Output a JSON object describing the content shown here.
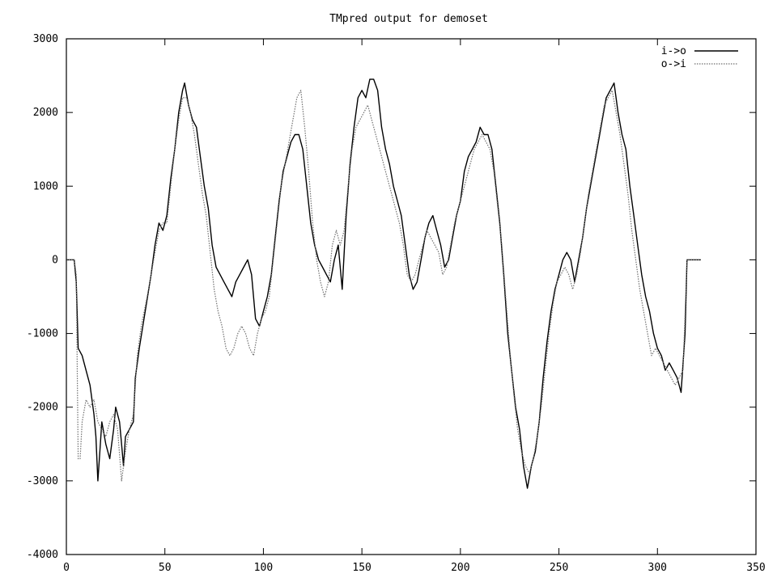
{
  "chart_data": {
    "type": "line",
    "title": "TMpred output for demoset",
    "xlabel": "",
    "ylabel": "",
    "xlim": [
      0,
      350
    ],
    "ylim": [
      -4000,
      3000
    ],
    "xticks": [
      0,
      50,
      100,
      150,
      200,
      250,
      300,
      350
    ],
    "yticks": [
      -4000,
      -3000,
      -2000,
      -1000,
      0,
      1000,
      2000,
      3000
    ],
    "grid": false,
    "legend_position": "top-right",
    "series": [
      {
        "name": "i->o",
        "style": "solid",
        "color": "#000000",
        "points": [
          [
            0,
            0
          ],
          [
            4,
            0
          ],
          [
            5,
            -300
          ],
          [
            6,
            -1200
          ],
          [
            8,
            -1300
          ],
          [
            10,
            -1500
          ],
          [
            12,
            -1700
          ],
          [
            14,
            -2100
          ],
          [
            15,
            -2400
          ],
          [
            16,
            -3000
          ],
          [
            17,
            -2600
          ],
          [
            18,
            -2200
          ],
          [
            20,
            -2500
          ],
          [
            22,
            -2700
          ],
          [
            24,
            -2300
          ],
          [
            25,
            -2000
          ],
          [
            27,
            -2200
          ],
          [
            28,
            -2500
          ],
          [
            29,
            -2800
          ],
          [
            30,
            -2400
          ],
          [
            32,
            -2300
          ],
          [
            34,
            -2200
          ],
          [
            35,
            -1600
          ],
          [
            37,
            -1200
          ],
          [
            40,
            -700
          ],
          [
            43,
            -200
          ],
          [
            45,
            200
          ],
          [
            47,
            500
          ],
          [
            49,
            400
          ],
          [
            51,
            600
          ],
          [
            53,
            1100
          ],
          [
            55,
            1500
          ],
          [
            57,
            2000
          ],
          [
            59,
            2300
          ],
          [
            60,
            2400
          ],
          [
            62,
            2100
          ],
          [
            64,
            1900
          ],
          [
            66,
            1800
          ],
          [
            68,
            1400
          ],
          [
            70,
            1000
          ],
          [
            72,
            700
          ],
          [
            74,
            200
          ],
          [
            76,
            -100
          ],
          [
            78,
            -200
          ],
          [
            80,
            -300
          ],
          [
            82,
            -400
          ],
          [
            84,
            -500
          ],
          [
            86,
            -300
          ],
          [
            88,
            -200
          ],
          [
            90,
            -100
          ],
          [
            92,
            0
          ],
          [
            94,
            -200
          ],
          [
            96,
            -800
          ],
          [
            98,
            -900
          ],
          [
            100,
            -700
          ],
          [
            102,
            -500
          ],
          [
            104,
            -200
          ],
          [
            106,
            300
          ],
          [
            108,
            800
          ],
          [
            110,
            1200
          ],
          [
            112,
            1400
          ],
          [
            114,
            1600
          ],
          [
            116,
            1700
          ],
          [
            118,
            1700
          ],
          [
            120,
            1500
          ],
          [
            122,
            1000
          ],
          [
            124,
            500
          ],
          [
            126,
            200
          ],
          [
            128,
            0
          ],
          [
            130,
            -100
          ],
          [
            132,
            -200
          ],
          [
            134,
            -300
          ],
          [
            136,
            0
          ],
          [
            138,
            200
          ],
          [
            140,
            -400
          ],
          [
            142,
            600
          ],
          [
            144,
            1300
          ],
          [
            146,
            1800
          ],
          [
            148,
            2200
          ],
          [
            150,
            2300
          ],
          [
            152,
            2200
          ],
          [
            154,
            2450
          ],
          [
            156,
            2450
          ],
          [
            158,
            2300
          ],
          [
            160,
            1800
          ],
          [
            162,
            1500
          ],
          [
            164,
            1300
          ],
          [
            166,
            1000
          ],
          [
            168,
            800
          ],
          [
            170,
            600
          ],
          [
            172,
            200
          ],
          [
            174,
            -200
          ],
          [
            176,
            -400
          ],
          [
            178,
            -300
          ],
          [
            180,
            0
          ],
          [
            182,
            300
          ],
          [
            184,
            500
          ],
          [
            186,
            600
          ],
          [
            188,
            400
          ],
          [
            190,
            200
          ],
          [
            192,
            -100
          ],
          [
            194,
            0
          ],
          [
            196,
            300
          ],
          [
            198,
            600
          ],
          [
            200,
            800
          ],
          [
            202,
            1200
          ],
          [
            204,
            1400
          ],
          [
            206,
            1500
          ],
          [
            208,
            1600
          ],
          [
            210,
            1800
          ],
          [
            212,
            1700
          ],
          [
            214,
            1700
          ],
          [
            216,
            1500
          ],
          [
            218,
            1000
          ],
          [
            220,
            500
          ],
          [
            222,
            -200
          ],
          [
            224,
            -1000
          ],
          [
            226,
            -1500
          ],
          [
            228,
            -2000
          ],
          [
            230,
            -2300
          ],
          [
            232,
            -2800
          ],
          [
            234,
            -3100
          ],
          [
            236,
            -2800
          ],
          [
            238,
            -2600
          ],
          [
            240,
            -2200
          ],
          [
            242,
            -1600
          ],
          [
            244,
            -1100
          ],
          [
            246,
            -700
          ],
          [
            248,
            -400
          ],
          [
            250,
            -200
          ],
          [
            252,
            0
          ],
          [
            254,
            100
          ],
          [
            256,
            0
          ],
          [
            258,
            -300
          ],
          [
            260,
            0
          ],
          [
            262,
            300
          ],
          [
            264,
            700
          ],
          [
            266,
            1000
          ],
          [
            268,
            1300
          ],
          [
            270,
            1600
          ],
          [
            272,
            1900
          ],
          [
            274,
            2200
          ],
          [
            276,
            2300
          ],
          [
            278,
            2400
          ],
          [
            280,
            2000
          ],
          [
            282,
            1700
          ],
          [
            284,
            1500
          ],
          [
            286,
            1000
          ],
          [
            288,
            600
          ],
          [
            290,
            200
          ],
          [
            292,
            -200
          ],
          [
            294,
            -500
          ],
          [
            296,
            -700
          ],
          [
            298,
            -1000
          ],
          [
            300,
            -1200
          ],
          [
            302,
            -1300
          ],
          [
            304,
            -1500
          ],
          [
            306,
            -1400
          ],
          [
            308,
            -1500
          ],
          [
            310,
            -1600
          ],
          [
            312,
            -1800
          ],
          [
            314,
            -1000
          ],
          [
            315,
            0
          ],
          [
            322,
            0
          ]
        ]
      },
      {
        "name": "o->i",
        "style": "dotted",
        "color": "#707070",
        "points": [
          [
            0,
            0
          ],
          [
            4,
            0
          ],
          [
            5,
            -200
          ],
          [
            6,
            -2700
          ],
          [
            7,
            -2700
          ],
          [
            8,
            -2200
          ],
          [
            10,
            -1900
          ],
          [
            12,
            -2000
          ],
          [
            14,
            -1900
          ],
          [
            16,
            -2200
          ],
          [
            18,
            -2300
          ],
          [
            20,
            -2400
          ],
          [
            22,
            -2200
          ],
          [
            24,
            -2100
          ],
          [
            26,
            -2300
          ],
          [
            28,
            -3000
          ],
          [
            30,
            -2600
          ],
          [
            32,
            -2300
          ],
          [
            34,
            -2100
          ],
          [
            36,
            -1300
          ],
          [
            38,
            -900
          ],
          [
            41,
            -500
          ],
          [
            43,
            -200
          ],
          [
            45,
            100
          ],
          [
            47,
            400
          ],
          [
            49,
            500
          ],
          [
            51,
            500
          ],
          [
            53,
            1000
          ],
          [
            55,
            1500
          ],
          [
            57,
            1900
          ],
          [
            59,
            2200
          ],
          [
            61,
            2200
          ],
          [
            63,
            2000
          ],
          [
            65,
            1700
          ],
          [
            67,
            1300
          ],
          [
            69,
            900
          ],
          [
            71,
            600
          ],
          [
            73,
            100
          ],
          [
            75,
            -400
          ],
          [
            77,
            -700
          ],
          [
            79,
            -900
          ],
          [
            81,
            -1200
          ],
          [
            83,
            -1300
          ],
          [
            85,
            -1200
          ],
          [
            87,
            -1000
          ],
          [
            89,
            -900
          ],
          [
            91,
            -1000
          ],
          [
            93,
            -1200
          ],
          [
            95,
            -1300
          ],
          [
            97,
            -1000
          ],
          [
            99,
            -800
          ],
          [
            101,
            -700
          ],
          [
            103,
            -500
          ],
          [
            105,
            0
          ],
          [
            107,
            500
          ],
          [
            109,
            1000
          ],
          [
            111,
            1300
          ],
          [
            113,
            1600
          ],
          [
            115,
            1900
          ],
          [
            117,
            2200
          ],
          [
            119,
            2300
          ],
          [
            121,
            1800
          ],
          [
            123,
            1200
          ],
          [
            125,
            500
          ],
          [
            127,
            0
          ],
          [
            129,
            -300
          ],
          [
            131,
            -500
          ],
          [
            133,
            -300
          ],
          [
            135,
            200
          ],
          [
            137,
            400
          ],
          [
            139,
            200
          ],
          [
            141,
            400
          ],
          [
            143,
            1000
          ],
          [
            145,
            1500
          ],
          [
            147,
            1800
          ],
          [
            149,
            1900
          ],
          [
            151,
            2000
          ],
          [
            153,
            2100
          ],
          [
            155,
            1900
          ],
          [
            157,
            1700
          ],
          [
            159,
            1500
          ],
          [
            161,
            1300
          ],
          [
            163,
            1100
          ],
          [
            165,
            900
          ],
          [
            167,
            700
          ],
          [
            169,
            500
          ],
          [
            171,
            200
          ],
          [
            173,
            -200
          ],
          [
            175,
            -300
          ],
          [
            177,
            -200
          ],
          [
            179,
            0
          ],
          [
            181,
            200
          ],
          [
            183,
            400
          ],
          [
            185,
            300
          ],
          [
            187,
            200
          ],
          [
            189,
            100
          ],
          [
            191,
            -200
          ],
          [
            193,
            -100
          ],
          [
            195,
            200
          ],
          [
            197,
            500
          ],
          [
            199,
            700
          ],
          [
            201,
            900
          ],
          [
            203,
            1100
          ],
          [
            205,
            1300
          ],
          [
            207,
            1500
          ],
          [
            209,
            1600
          ],
          [
            211,
            1700
          ],
          [
            213,
            1600
          ],
          [
            215,
            1500
          ],
          [
            217,
            1200
          ],
          [
            219,
            700
          ],
          [
            221,
            200
          ],
          [
            223,
            -500
          ],
          [
            225,
            -1200
          ],
          [
            227,
            -1800
          ],
          [
            229,
            -2300
          ],
          [
            231,
            -2600
          ],
          [
            233,
            -2800
          ],
          [
            235,
            -2900
          ],
          [
            237,
            -2700
          ],
          [
            239,
            -2400
          ],
          [
            241,
            -2000
          ],
          [
            243,
            -1500
          ],
          [
            245,
            -1000
          ],
          [
            247,
            -600
          ],
          [
            249,
            -300
          ],
          [
            251,
            -200
          ],
          [
            253,
            -100
          ],
          [
            255,
            -200
          ],
          [
            257,
            -400
          ],
          [
            259,
            -200
          ],
          [
            261,
            100
          ],
          [
            263,
            500
          ],
          [
            265,
            900
          ],
          [
            267,
            1200
          ],
          [
            269,
            1500
          ],
          [
            271,
            1800
          ],
          [
            273,
            2100
          ],
          [
            275,
            2200
          ],
          [
            277,
            2300
          ],
          [
            279,
            2000
          ],
          [
            281,
            1700
          ],
          [
            283,
            1300
          ],
          [
            285,
            900
          ],
          [
            287,
            400
          ],
          [
            289,
            0
          ],
          [
            291,
            -400
          ],
          [
            293,
            -700
          ],
          [
            295,
            -1000
          ],
          [
            297,
            -1300
          ],
          [
            299,
            -1200
          ],
          [
            301,
            -1300
          ],
          [
            303,
            -1400
          ],
          [
            305,
            -1500
          ],
          [
            307,
            -1600
          ],
          [
            309,
            -1700
          ],
          [
            311,
            -1600
          ],
          [
            313,
            -1500
          ],
          [
            315,
            0
          ],
          [
            322,
            0
          ]
        ]
      }
    ]
  }
}
